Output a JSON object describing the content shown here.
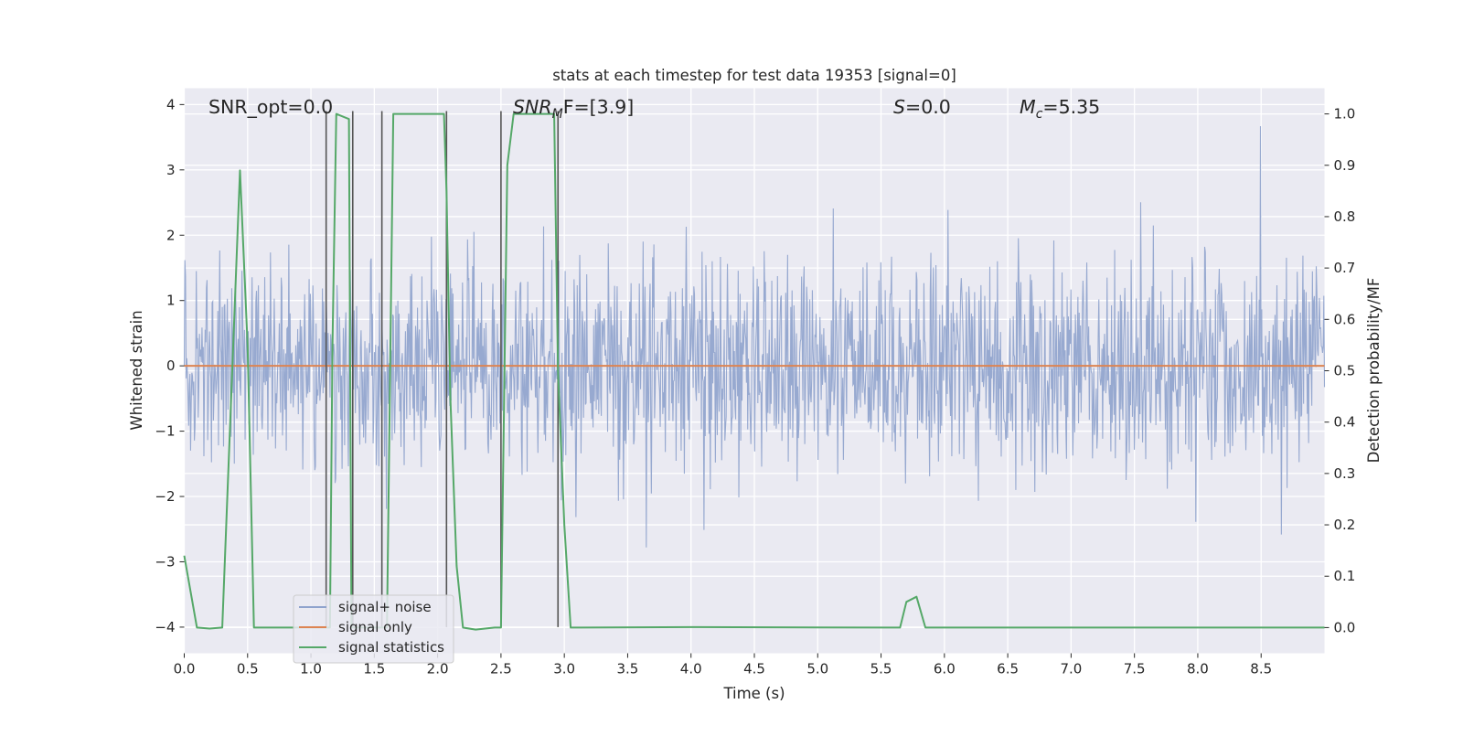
{
  "chart_data": {
    "type": "line",
    "title": "stats at each timestep for test data 19353 [signal=0]",
    "xlabel": "Time (s)",
    "ylabel_left": "Whitened strain",
    "ylabel_right": "Detection probability/MF",
    "xlim": [
      0.0,
      9.0
    ],
    "ylim_left": [
      -4.4,
      4.25
    ],
    "ylim_right": [
      -0.05,
      1.05
    ],
    "x_ticks": [
      "0.0",
      "0.5",
      "1.0",
      "1.5",
      "2.0",
      "2.5",
      "3.0",
      "3.5",
      "4.0",
      "4.5",
      "5.0",
      "5.5",
      "6.0",
      "6.5",
      "7.0",
      "7.5",
      "8.0",
      "8.5"
    ],
    "y_ticks_left": [
      "4",
      "3",
      "2",
      "1",
      "0",
      "−1",
      "−2",
      "−3",
      "−4"
    ],
    "y_ticks_right": [
      "1.0",
      "0.9",
      "0.8",
      "0.7",
      "0.6",
      "0.5",
      "0.4",
      "0.3",
      "0.2",
      "0.1",
      "0.0"
    ],
    "grid": true,
    "legend_position": "lower-left",
    "annotations": {
      "snr_opt": "SNR_opt=0.0",
      "snr_mf_main": "SNR",
      "snr_mf_sub": "M",
      "snr_mf_rest": "F=[3.9]",
      "s_main": "S",
      "s_rest": "=0.0",
      "mc_main": "M",
      "mc_sub": "c",
      "mc_rest": "=5.35"
    },
    "series": [
      {
        "name": "signal+ noise",
        "color": "#8fa3cd",
        "axis": "left",
        "description_values": "whitened noise, roughly within [-4, 3.7]"
      },
      {
        "name": "signal only",
        "color": "#dd8452",
        "axis": "left",
        "x": [
          0.0,
          9.0
        ],
        "y": [
          0.0,
          0.0
        ]
      },
      {
        "name": "signal statistics",
        "color": "#55a868",
        "axis": "right",
        "x": [
          0.0,
          0.05,
          0.1,
          0.2,
          0.3,
          0.44,
          0.5,
          0.55,
          0.7,
          1.0,
          1.05,
          1.12,
          1.15,
          1.17,
          1.2,
          1.3,
          1.32,
          1.33,
          1.37,
          1.5,
          1.58,
          1.6,
          1.65,
          2.05,
          2.07,
          2.1,
          2.15,
          2.2,
          2.3,
          2.45,
          2.5,
          2.55,
          2.6,
          2.92,
          2.95,
          3.0,
          3.05,
          3.1,
          4.0,
          5.5,
          5.65,
          5.7,
          5.78,
          5.85,
          5.95,
          6.5,
          9.0
        ],
        "y": [
          0.14,
          0.07,
          0.0,
          -0.002,
          0.0,
          0.89,
          0.55,
          0.0,
          0.0,
          0.0,
          0.0,
          0.0,
          0.0,
          0.55,
          1.0,
          0.99,
          0.0,
          0.0,
          0.0,
          0.0,
          0.0,
          0.0,
          1.0,
          1.0,
          0.85,
          0.45,
          0.12,
          0.0,
          -0.004,
          0.0,
          0.0,
          0.9,
          1.0,
          1.0,
          0.5,
          0.2,
          0.0,
          0.0,
          0.001,
          0.0,
          0.0,
          0.05,
          0.06,
          0.0,
          0.0,
          0.0,
          0.0
        ]
      }
    ],
    "vertical_markers": [
      1.12,
      1.33,
      1.56,
      2.07,
      2.5,
      2.95
    ]
  }
}
